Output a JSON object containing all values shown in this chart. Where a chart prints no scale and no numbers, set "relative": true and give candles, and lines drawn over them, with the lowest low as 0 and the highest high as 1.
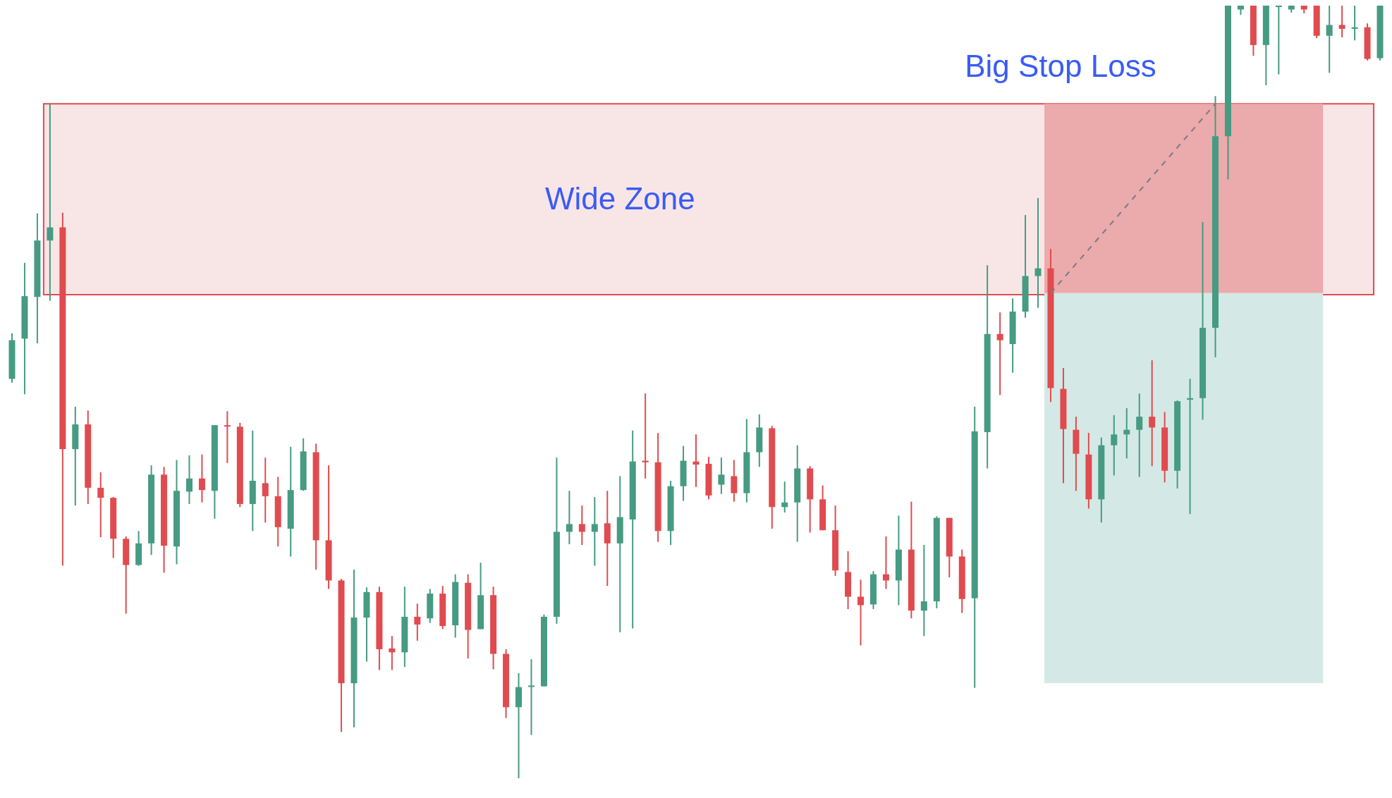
{
  "chart_data": {
    "type": "candlestick",
    "relative": true,
    "categories": [
      null,
      null,
      null,
      null,
      null,
      null,
      null,
      null,
      null,
      null,
      null,
      null,
      null,
      null,
      null,
      null,
      null,
      null,
      null,
      null,
      null,
      null,
      null,
      null,
      null,
      null,
      null,
      null,
      null,
      null,
      null,
      null,
      null,
      null,
      null,
      null,
      null,
      null,
      null,
      null,
      null,
      null,
      null,
      null,
      null,
      null,
      null,
      null,
      null,
      null,
      null,
      null,
      null,
      null,
      null,
      null,
      null,
      null,
      null,
      null,
      null,
      null,
      null,
      null,
      null,
      null,
      null,
      null,
      null,
      null,
      null,
      null,
      null,
      null,
      null,
      null,
      null,
      null,
      null,
      null,
      null,
      null,
      null,
      null,
      null,
      null,
      null,
      null,
      null,
      null,
      null,
      null,
      null,
      null,
      null,
      null,
      null,
      null,
      null,
      null,
      null,
      null,
      null,
      null,
      null,
      null,
      null,
      null,
      null
    ],
    "ohlc": [
      [
        0.517,
        0.576,
        0.512,
        0.567
      ],
      [
        0.569,
        0.667,
        0.497,
        0.624
      ],
      [
        0.623,
        0.731,
        0.563,
        0.696
      ],
      [
        0.696,
        0.873,
        0.618,
        0.713
      ],
      [
        0.713,
        0.732,
        0.275,
        0.426
      ],
      [
        0.426,
        0.481,
        0.353,
        0.458
      ],
      [
        0.458,
        0.476,
        0.355,
        0.376
      ],
      [
        0.376,
        0.396,
        0.312,
        0.363
      ],
      [
        0.363,
        0.364,
        0.285,
        0.31
      ],
      [
        0.31,
        0.313,
        0.213,
        0.276
      ],
      [
        0.276,
        0.32,
        0.275,
        0.304
      ],
      [
        0.304,
        0.405,
        0.289,
        0.393
      ],
      [
        0.393,
        0.403,
        0.266,
        0.301
      ],
      [
        0.3,
        0.412,
        0.277,
        0.372
      ],
      [
        0.371,
        0.418,
        0.355,
        0.388
      ],
      [
        0.388,
        0.419,
        0.357,
        0.373
      ],
      [
        0.372,
        0.457,
        0.336,
        0.457
      ],
      [
        0.457,
        0.475,
        0.408,
        0.456
      ],
      [
        0.455,
        0.46,
        0.351,
        0.355
      ],
      [
        0.355,
        0.45,
        0.32,
        0.385
      ],
      [
        0.382,
        0.415,
        0.331,
        0.365
      ],
      [
        0.365,
        0.39,
        0.3,
        0.325
      ],
      [
        0.323,
        0.429,
        0.287,
        0.373
      ],
      [
        0.373,
        0.44,
        0.372,
        0.423
      ],
      [
        0.422,
        0.433,
        0.27,
        0.308
      ],
      [
        0.308,
        0.405,
        0.245,
        0.256
      ],
      [
        0.256,
        0.258,
        0.06,
        0.123
      ],
      [
        0.123,
        0.27,
        0.066,
        0.208
      ],
      [
        0.208,
        0.247,
        0.151,
        0.241
      ],
      [
        0.241,
        0.248,
        0.14,
        0.167
      ],
      [
        0.168,
        0.184,
        0.14,
        0.163
      ],
      [
        0.163,
        0.248,
        0.144,
        0.209
      ],
      [
        0.209,
        0.226,
        0.178,
        0.199
      ],
      [
        0.207,
        0.245,
        0.201,
        0.239
      ],
      [
        0.239,
        0.249,
        0.193,
        0.197
      ],
      [
        0.198,
        0.264,
        0.182,
        0.254
      ],
      [
        0.253,
        0.264,
        0.155,
        0.192
      ],
      [
        0.193,
        0.279,
        0.193,
        0.237
      ],
      [
        0.237,
        0.248,
        0.141,
        0.161
      ],
      [
        0.161,
        0.167,
        0.078,
        0.092
      ],
      [
        0.092,
        0.136,
        0,
        0.118
      ],
      [
        0.119,
        0.154,
        0.056,
        0.12
      ],
      [
        0.119,
        0.212,
        0.119,
        0.209
      ],
      [
        0.209,
        0.415,
        0.2,
        0.319
      ],
      [
        0.319,
        0.372,
        0.303,
        0.329
      ],
      [
        0.329,
        0.353,
        0.302,
        0.319
      ],
      [
        0.319,
        0.364,
        0.275,
        0.329
      ],
      [
        0.33,
        0.372,
        0.249,
        0.304
      ],
      [
        0.304,
        0.391,
        0.189,
        0.338
      ],
      [
        0.335,
        0.45,
        0.194,
        0.41
      ],
      [
        0.411,
        0.498,
        0.388,
        0.409
      ],
      [
        0.409,
        0.447,
        0.306,
        0.32
      ],
      [
        0.32,
        0.385,
        0.302,
        0.378
      ],
      [
        0.378,
        0.43,
        0.359,
        0.411
      ],
      [
        0.41,
        0.445,
        0.377,
        0.406
      ],
      [
        0.407,
        0.416,
        0.361,
        0.366
      ],
      [
        0.38,
        0.415,
        0.368,
        0.393
      ],
      [
        0.391,
        0.412,
        0.358,
        0.369
      ],
      [
        0.369,
        0.465,
        0.357,
        0.422
      ],
      [
        0.422,
        0.471,
        0.403,
        0.454
      ],
      [
        0.453,
        0.456,
        0.323,
        0.351
      ],
      [
        0.351,
        0.384,
        0.344,
        0.357
      ],
      [
        0.357,
        0.431,
        0.306,
        0.401
      ],
      [
        0.401,
        0.404,
        0.318,
        0.361
      ],
      [
        0.361,
        0.379,
        0.321,
        0.321
      ],
      [
        0.321,
        0.353,
        0.262,
        0.269
      ],
      [
        0.267,
        0.294,
        0.219,
        0.235
      ],
      [
        0.235,
        0.257,
        0.172,
        0.224
      ],
      [
        0.225,
        0.268,
        0.219,
        0.264
      ],
      [
        0.264,
        0.313,
        0.245,
        0.256
      ],
      [
        0.256,
        0.34,
        0.224,
        0.296
      ],
      [
        0.296,
        0.358,
        0.207,
        0.217
      ],
      [
        0.217,
        0.302,
        0.184,
        0.229
      ],
      [
        0.229,
        0.339,
        0.22,
        0.337
      ],
      [
        0.337,
        0.337,
        0.26,
        0.287
      ],
      [
        0.287,
        0.296,
        0.214,
        0.232
      ],
      [
        0.233,
        0.481,
        0.117,
        0.449
      ],
      [
        0.448,
        0.664,
        0.401,
        0.575
      ],
      [
        0.575,
        0.603,
        0.496,
        0.567
      ],
      [
        0.562,
        0.621,
        0.525,
        0.604
      ],
      [
        0.604,
        0.729,
        0.596,
        0.65
      ],
      [
        0.65,
        0.751,
        0.609,
        0.66
      ],
      [
        0.66,
        0.685,
        0.487,
        0.505
      ],
      [
        0.504,
        0.531,
        0.382,
        0.452
      ],
      [
        0.451,
        0.468,
        0.372,
        0.42
      ],
      [
        0.419,
        0.447,
        0.349,
        0.361
      ],
      [
        0.361,
        0.441,
        0.331,
        0.431
      ],
      [
        0.431,
        0.47,
        0.392,
        0.445
      ],
      [
        0.445,
        0.479,
        0.414,
        0.451
      ],
      [
        0.451,
        0.498,
        0.39,
        0.468
      ],
      [
        0.468,
        0.541,
        0.404,
        0.454
      ],
      [
        0.454,
        0.474,
        0.383,
        0.398
      ],
      [
        0.398,
        0.489,
        0.375,
        0.488
      ],
      [
        0.49,
        0.517,
        0.342,
        0.492
      ],
      [
        0.492,
        0.72,
        0.464,
        0.583
      ],
      [
        0.583,
        0.883,
        0.545,
        0.831
      ],
      [
        0.831,
        1,
        0.775,
        1
      ],
      [
        0.995,
        1,
        0.988,
        1
      ],
      [
        1,
        1,
        0.935,
        0.949
      ],
      [
        0.949,
        1,
        0.897,
        1
      ],
      [
        0.999,
        1,
        0.911,
        1
      ],
      [
        0.995,
        1,
        0.991,
        1
      ],
      [
        1,
        1,
        0.99,
        0.995
      ],
      [
        1,
        1,
        0.958,
        0.961
      ],
      [
        0.961,
        1,
        0.913,
        0.975
      ],
      [
        0.975,
        1,
        0.959,
        0.97
      ],
      [
        0.97,
        1,
        0.955,
        0.972
      ],
      [
        0.972,
        0.977,
        0.929,
        0.931
      ],
      [
        0.932,
        1,
        0.929,
        1
      ]
    ],
    "series": [
      {
        "type": "line",
        "color": "#787b86",
        "line_style": "dashed",
        "values": [
          null,
          null,
          null,
          null,
          null,
          null,
          null,
          null,
          null,
          null,
          null,
          null,
          null,
          null,
          null,
          null,
          null,
          null,
          null,
          null,
          null,
          null,
          null,
          null,
          null,
          null,
          null,
          null,
          null,
          null,
          null,
          null,
          null,
          null,
          null,
          null,
          null,
          null,
          null,
          null,
          null,
          null,
          null,
          null,
          null,
          null,
          null,
          null,
          null,
          null,
          null,
          null,
          null,
          null,
          null,
          null,
          null,
          null,
          null,
          null,
          null,
          null,
          null,
          null,
          null,
          null,
          null,
          null,
          null,
          null,
          null,
          null,
          null,
          null,
          null,
          null,
          null,
          null,
          null,
          null,
          null,
          null,
          0.628,
          null,
          null,
          null,
          null,
          null,
          null,
          null,
          null,
          null,
          null,
          null,
          null,
          0.873,
          null,
          null,
          null,
          null,
          null,
          null,
          null,
          null,
          null,
          null,
          null,
          null,
          null
        ]
      }
    ],
    "bands": [
      {
        "axis": "y",
        "from": 0.626,
        "to": 0.873,
        "label": "Wide Zone",
        "color": "#f8e6e6"
      },
      {
        "axis": "y",
        "from": 0.628,
        "to": 0.873,
        "label": "Big Stop Loss",
        "color": "#ebaaab"
      },
      {
        "axis": "y",
        "from": 0.123,
        "to": 0.628,
        "color": "#d4e9e5"
      }
    ]
  }
}
